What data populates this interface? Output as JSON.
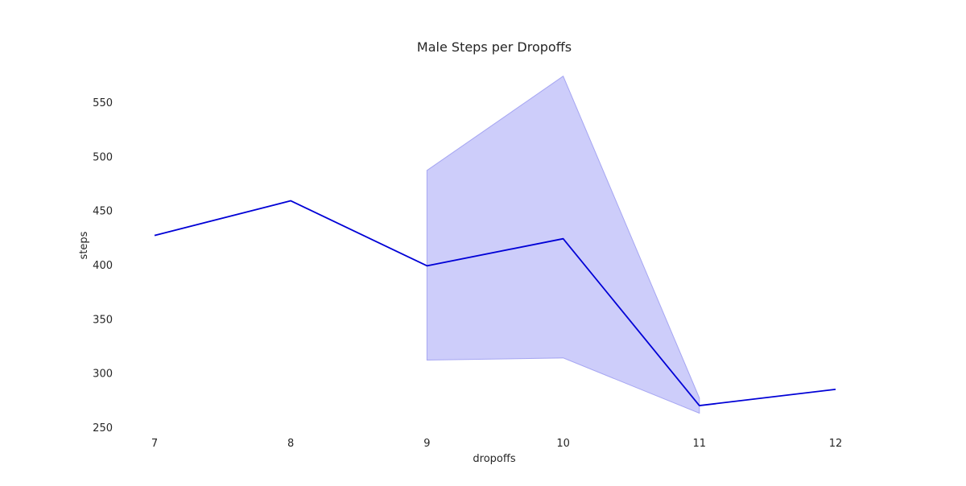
{
  "chart_data": {
    "type": "line",
    "title": "Male Steps per Dropoffs",
    "xlabel": "dropoffs",
    "ylabel": "steps",
    "x": [
      7,
      8,
      9,
      10,
      11,
      12
    ],
    "series": [
      {
        "values": [
          427,
          459,
          399,
          424,
          270,
          285
        ],
        "ci_lower": [
          null,
          null,
          312,
          314,
          263,
          null
        ],
        "ci_upper": [
          null,
          null,
          487,
          574,
          277,
          null
        ]
      }
    ],
    "x_ticks": [
      "7",
      "8",
      "9",
      "10",
      "11",
      "12"
    ],
    "y_ticks": [
      "250",
      "300",
      "350",
      "400",
      "450",
      "500",
      "550"
    ],
    "ylim": [
      245,
      580
    ],
    "grid": false,
    "colors": {
      "line": "#0000d6",
      "band": "#cdcdfa",
      "band_edge": "#a6a6f2"
    }
  }
}
